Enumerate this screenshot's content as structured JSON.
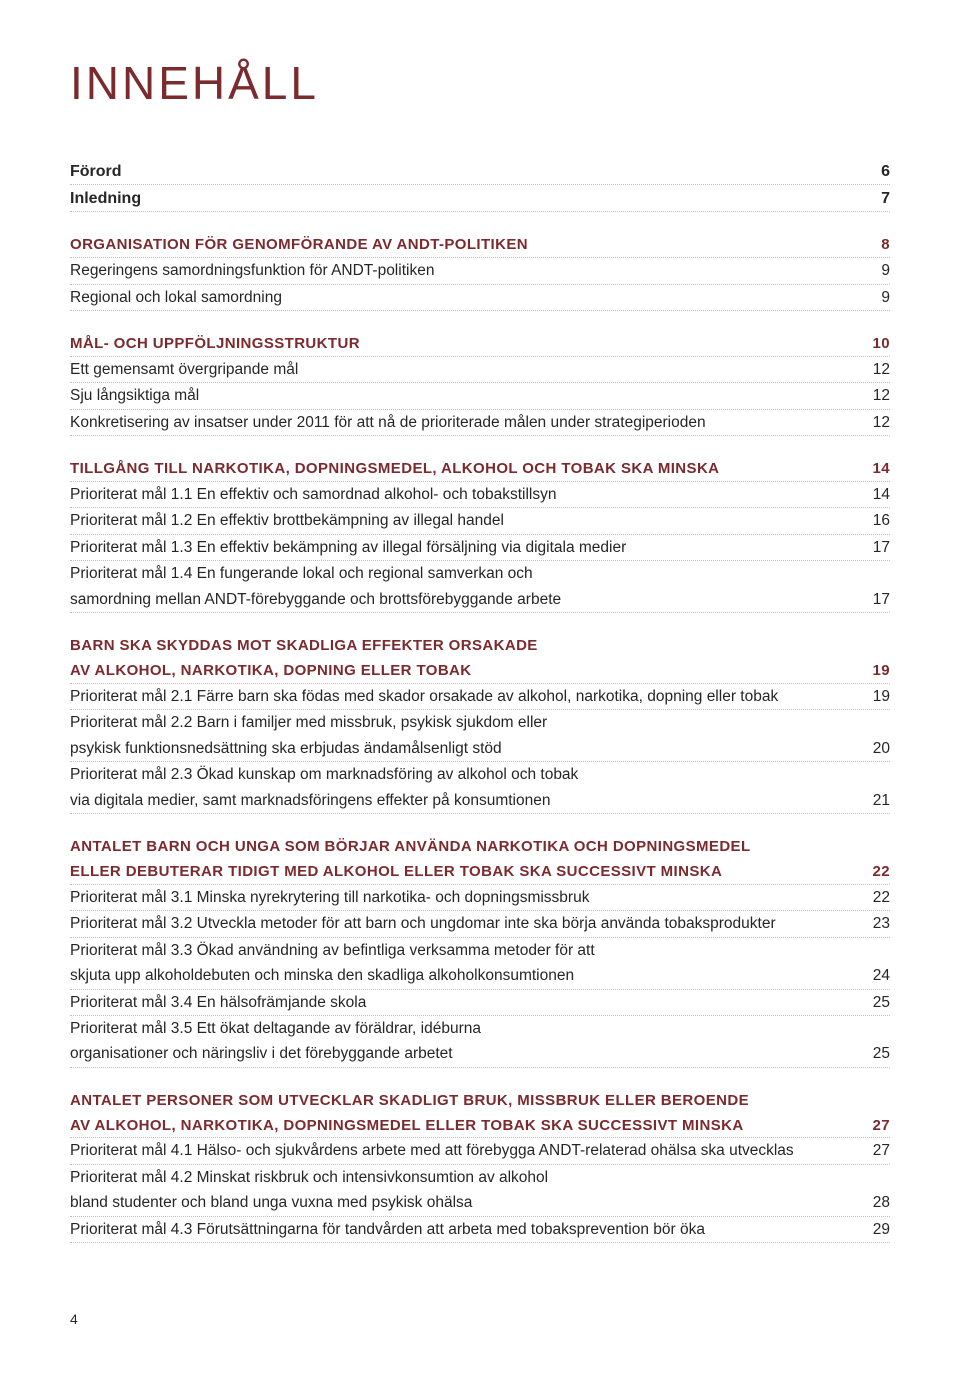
{
  "colors": {
    "primary": "#7b2a2e",
    "text": "#262626",
    "dotted": "#bfbfbf",
    "background": "#ffffff"
  },
  "typography": {
    "title_fontsize_pt": 34,
    "heading_fontsize_pt": 11,
    "body_fontsize_pt": 11.5,
    "family": "Helvetica"
  },
  "page": {
    "title": "INNEHÅLL",
    "number": "4"
  },
  "intro": [
    {
      "label": "Förord",
      "page": "6"
    },
    {
      "label": "Inledning",
      "page": "7"
    }
  ],
  "sections": [
    {
      "heading": {
        "label": "ORGANISATION FÖR GENOMFÖRANDE AV ANDT-POLITIKEN",
        "page": "8"
      },
      "entries": [
        {
          "lines": [
            "Regeringens samordningsfunktion för ANDT-politiken"
          ],
          "page": "9"
        },
        {
          "lines": [
            "Regional och lokal samordning"
          ],
          "page": "9"
        }
      ]
    },
    {
      "heading": {
        "label": "MÅL- OCH UPPFÖLJNINGSSTRUKTUR",
        "page": "10"
      },
      "entries": [
        {
          "lines": [
            "Ett gemensamt övergripande mål"
          ],
          "page": "12"
        },
        {
          "lines": [
            "Sju långsiktiga mål"
          ],
          "page": "12"
        },
        {
          "lines": [
            "Konkretisering av insatser under 2011 för att nå de prioriterade målen under strategiperioden"
          ],
          "page": "12"
        }
      ]
    },
    {
      "heading": {
        "label": "TILLGÅNG TILL NARKOTIKA, DOPNINGSMEDEL, ALKOHOL OCH TOBAK SKA MINSKA",
        "page": "14"
      },
      "entries": [
        {
          "lines": [
            "Prioriterat mål 1.1 En effektiv och samordnad alkohol- och tobakstillsyn"
          ],
          "page": "14"
        },
        {
          "lines": [
            "Prioriterat mål 1.2 En effektiv brottbekämpning av illegal handel"
          ],
          "page": "16"
        },
        {
          "lines": [
            "Prioriterat mål 1.3 En effektiv bekämpning av illegal försäljning via digitala medier"
          ],
          "page": "17"
        },
        {
          "lines": [
            "Prioriterat mål 1.4 En fungerande lokal och regional samverkan och",
            "samordning mellan ANDT-förebyggande och brottsförebyggande arbete"
          ],
          "page": "17"
        }
      ]
    },
    {
      "heading": {
        "label": "BARN SKA SKYDDAS MOT SKADLIGA EFFEKTER ORSAKADE\nAV ALKOHOL, NARKOTIKA, DOPNING ELLER TOBAK",
        "page": "19"
      },
      "entries": [
        {
          "lines": [
            "Prioriterat mål 2.1 Färre barn ska födas med skador orsakade av alkohol, narkotika, dopning eller tobak"
          ],
          "page": "19"
        },
        {
          "lines": [
            "Prioriterat mål 2.2 Barn i familjer med missbruk, psykisk sjukdom eller",
            "psykisk funktionsnedsättning ska erbjudas ändamålsenligt stöd"
          ],
          "page": "20"
        },
        {
          "lines": [
            "Prioriterat mål 2.3 Ökad kunskap om marknadsföring av alkohol och tobak",
            "via digitala medier, samt marknadsföringens effekter på konsumtionen"
          ],
          "page": "21"
        }
      ]
    },
    {
      "heading": {
        "label": "ANTALET BARN OCH UNGA SOM BÖRJAR ANVÄNDA NARKOTIKA OCH DOPNINGSMEDEL\nELLER DEBUTERAR TIDIGT MED ALKOHOL ELLER TOBAK SKA SUCCESSIVT MINSKA",
        "page": "22"
      },
      "entries": [
        {
          "lines": [
            "Prioriterat mål 3.1 Minska nyrekrytering till narkotika- och dopningsmissbruk"
          ],
          "page": "22"
        },
        {
          "lines": [
            "Prioriterat mål 3.2 Utveckla metoder för att barn och ungdomar inte ska börja använda tobaksprodukter"
          ],
          "page": "23"
        },
        {
          "lines": [
            "Prioriterat mål 3.3 Ökad användning av befintliga verksamma metoder för att",
            "skjuta upp alkoholdebuten och minska den skadliga alkoholkonsumtionen"
          ],
          "page": "24"
        },
        {
          "lines": [
            "Prioriterat mål 3.4 En hälsofrämjande skola"
          ],
          "page": "25"
        },
        {
          "lines": [
            "Prioriterat mål 3.5 Ett ökat deltagande av föräldrar, idéburna",
            "organisationer och näringsliv i det förebyggande arbetet"
          ],
          "page": "25"
        }
      ]
    },
    {
      "heading": {
        "label": "ANTALET PERSONER SOM UTVECKLAR SKADLIGT BRUK, MISSBRUK ELLER BEROENDE\nAV ALKOHOL, NARKOTIKA, DOPNINGSMEDEL ELLER TOBAK SKA SUCCESSIVT MINSKA",
        "page": "27"
      },
      "entries": [
        {
          "lines": [
            "Prioriterat mål 4.1 Hälso- och sjukvårdens arbete med att förebygga ANDT-relaterad ohälsa ska utvecklas"
          ],
          "page": "27"
        },
        {
          "lines": [
            "Prioriterat mål 4.2 Minskat riskbruk och intensivkonsumtion av alkohol",
            "bland studenter och bland unga vuxna med psykisk ohälsa"
          ],
          "page": "28"
        },
        {
          "lines": [
            "Prioriterat mål 4.3 Förutsättningarna för tandvården att arbeta med tobaksprevention bör öka"
          ],
          "page": "29"
        }
      ]
    }
  ]
}
